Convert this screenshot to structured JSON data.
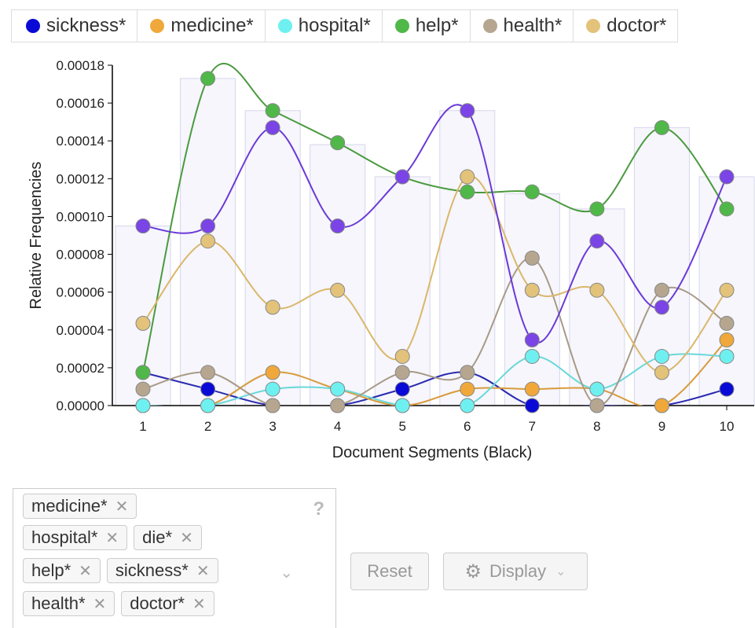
{
  "legend": [
    {
      "label": "sickness*",
      "color": "#0a0ad6"
    },
    {
      "label": "medicine*",
      "color": "#f0a83a"
    },
    {
      "label": "hospital*",
      "color": "#6ff0f0"
    },
    {
      "label": "help*",
      "color": "#4fb848"
    },
    {
      "label": "health*",
      "color": "#b6a690"
    },
    {
      "label": "doctor*",
      "color": "#e3c27a"
    }
  ],
  "chart_data": {
    "type": "line",
    "xlabel": "Document Segments (Black)",
    "ylabel": "Relative Frequencies",
    "ylim": [
      0,
      0.00018
    ],
    "yticks": [
      "0.00000",
      "0.00002",
      "0.00004",
      "0.00006",
      "0.00008",
      "0.00010",
      "0.00012",
      "0.00014",
      "0.00016",
      "0.00018"
    ],
    "x": [
      1,
      2,
      3,
      4,
      5,
      6,
      7,
      8,
      9,
      10
    ],
    "bars": [
      9.5e-05,
      0.000173,
      0.000156,
      0.000138,
      0.000121,
      0.000156,
      0.000112,
      0.000104,
      0.000147,
      0.000121
    ],
    "series": [
      {
        "name": "sickness*",
        "color": "#0a0ad6",
        "line": "#2a2ab0",
        "values": [
          1.75e-05,
          8.7e-06,
          0,
          0,
          8.7e-06,
          1.75e-05,
          0,
          0,
          0,
          8.7e-06
        ]
      },
      {
        "name": "medicine*",
        "color": "#f0a83a",
        "line": "#d89b3c",
        "values": [
          0,
          0,
          1.75e-05,
          8.7e-06,
          0,
          8.7e-06,
          8.7e-06,
          8.7e-06,
          0,
          3.47e-05
        ]
      },
      {
        "name": "hospital*",
        "color": "#6ff0f0",
        "line": "#6ad8d8",
        "values": [
          0,
          0,
          8.7e-06,
          8.7e-06,
          0,
          0,
          2.6e-05,
          8.7e-06,
          2.6e-05,
          2.6e-05
        ]
      },
      {
        "name": "help*",
        "color": "#4fb848",
        "line": "#4a9a3e",
        "values": [
          1.75e-05,
          0.000173,
          0.000156,
          0.000139,
          0.000121,
          0.000113,
          0.000113,
          0.000104,
          0.000147,
          0.000104
        ]
      },
      {
        "name": "health*",
        "color": "#b6a690",
        "line": "#a89a86",
        "values": [
          8.7e-06,
          1.75e-05,
          0,
          0,
          1.75e-05,
          1.75e-05,
          7.8e-05,
          0,
          6.1e-05,
          4.35e-05
        ]
      },
      {
        "name": "doctor*",
        "color": "#e3c27a",
        "line": "#dbb76a",
        "values": [
          4.35e-05,
          8.7e-05,
          5.2e-05,
          6.1e-05,
          2.6e-05,
          0.000121,
          6.1e-05,
          6.1e-05,
          1.75e-05,
          6.1e-05
        ]
      },
      {
        "name": "die*",
        "color": "#7a44e6",
        "line": "#6a3ad8",
        "values": [
          9.5e-05,
          9.5e-05,
          0.000147,
          9.5e-05,
          0.000121,
          0.000156,
          3.47e-05,
          8.7e-05,
          5.2e-05,
          0.000121
        ]
      }
    ]
  },
  "terms": [
    [
      "medicine*"
    ],
    [
      "hospital*",
      "die*"
    ],
    [
      "help*",
      "sickness*"
    ],
    [
      "health*",
      "doctor*"
    ]
  ],
  "controls": {
    "help": "?",
    "chevron": "⌄",
    "reset_label": "Reset",
    "display_label": "Display",
    "close_glyph": "✕"
  }
}
